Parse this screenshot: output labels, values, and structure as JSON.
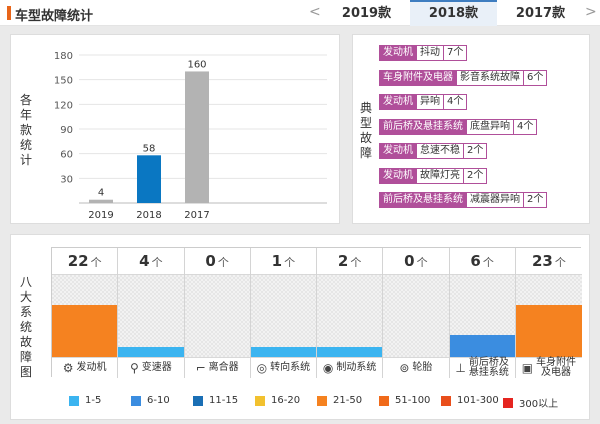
{
  "header": {
    "title": "车型故障统计",
    "prev_arrow": "<",
    "next_arrow": ">",
    "tabs": [
      {
        "label": "2019款",
        "active": false
      },
      {
        "label": "2018款",
        "active": true
      },
      {
        "label": "2017款",
        "active": false
      }
    ]
  },
  "year_chart": {
    "side_label": "各年款统计",
    "chart_data": {
      "type": "bar",
      "categories": [
        "2019",
        "2018",
        "2017"
      ],
      "values": [
        4,
        58,
        160
      ],
      "value_labels": [
        "4",
        "58",
        "160"
      ],
      "colors": [
        "#b3b3b3",
        "#0a77c2",
        "#b3b3b3"
      ],
      "ylim": [
        0,
        180
      ],
      "yticks": [
        "180",
        "150",
        "120",
        "90",
        "60",
        "30"
      ],
      "title": "",
      "xlabel": "",
      "ylabel": "",
      "grid": true
    }
  },
  "typical": {
    "side_label": "典型故障",
    "items": [
      {
        "system": "发动机",
        "fault": "抖动",
        "count": "7个"
      },
      {
        "system": "车身附件及电器",
        "fault": "影音系统故障",
        "count": "6个"
      },
      {
        "system": "发动机",
        "fault": "异响",
        "count": "4个"
      },
      {
        "system": "前后桥及悬挂系统",
        "fault": "底盘异响",
        "count": "4个"
      },
      {
        "system": "发动机",
        "fault": "怠速不稳",
        "count": "2个"
      },
      {
        "system": "发动机",
        "fault": "故障灯亮",
        "count": "2个"
      },
      {
        "system": "前后桥及悬挂系统",
        "fault": "减震器异响",
        "count": "2个"
      }
    ]
  },
  "systems": {
    "side_label": "八大系统故障图",
    "unit": "个",
    "items": [
      {
        "count": "22",
        "name": "发动机",
        "icon": "engine-icon",
        "glyph": "⚙",
        "level": 22,
        "color": "#f58220"
      },
      {
        "count": "4",
        "name": "变速器",
        "icon": "gearshift-icon",
        "glyph": "⚲",
        "level": 4,
        "color": "#3bb4f0"
      },
      {
        "count": "0",
        "name": "离合器",
        "icon": "clutch-pedal-icon",
        "glyph": "⌐",
        "level": 0,
        "color": "#3bb4f0"
      },
      {
        "count": "1",
        "name": "转向系统",
        "icon": "steering-wheel-icon",
        "glyph": "◎",
        "level": 1,
        "color": "#3bb4f0"
      },
      {
        "count": "2",
        "name": "制动系统",
        "icon": "brake-disc-icon",
        "glyph": "◉",
        "level": 2,
        "color": "#3bb4f0"
      },
      {
        "count": "0",
        "name": "轮胎",
        "icon": "tire-icon",
        "glyph": "⊚",
        "level": 0,
        "color": "#3bb4f0"
      },
      {
        "count": "6",
        "name": "前后桥及\n悬挂系统",
        "icon": "suspension-icon",
        "glyph": "⊥",
        "level": 6,
        "color": "#3b8de0"
      },
      {
        "count": "23",
        "name": "车身附件\n及电器",
        "icon": "battery-icon",
        "glyph": "▣",
        "level": 23,
        "color": "#f58220"
      }
    ]
  },
  "legend": [
    {
      "label": "1-5",
      "color": "#3bb4f0"
    },
    {
      "label": "6-10",
      "color": "#3b8de0"
    },
    {
      "label": "11-15",
      "color": "#1a6fb5"
    },
    {
      "label": "16-20",
      "color": "#f2c12e"
    },
    {
      "label": "21-50",
      "color": "#f58220"
    },
    {
      "label": "51-100",
      "color": "#f06a1a"
    },
    {
      "label": "101-300",
      "color": "#e94e1b"
    },
    {
      "label": "300以上",
      "color": "#e52520"
    }
  ]
}
